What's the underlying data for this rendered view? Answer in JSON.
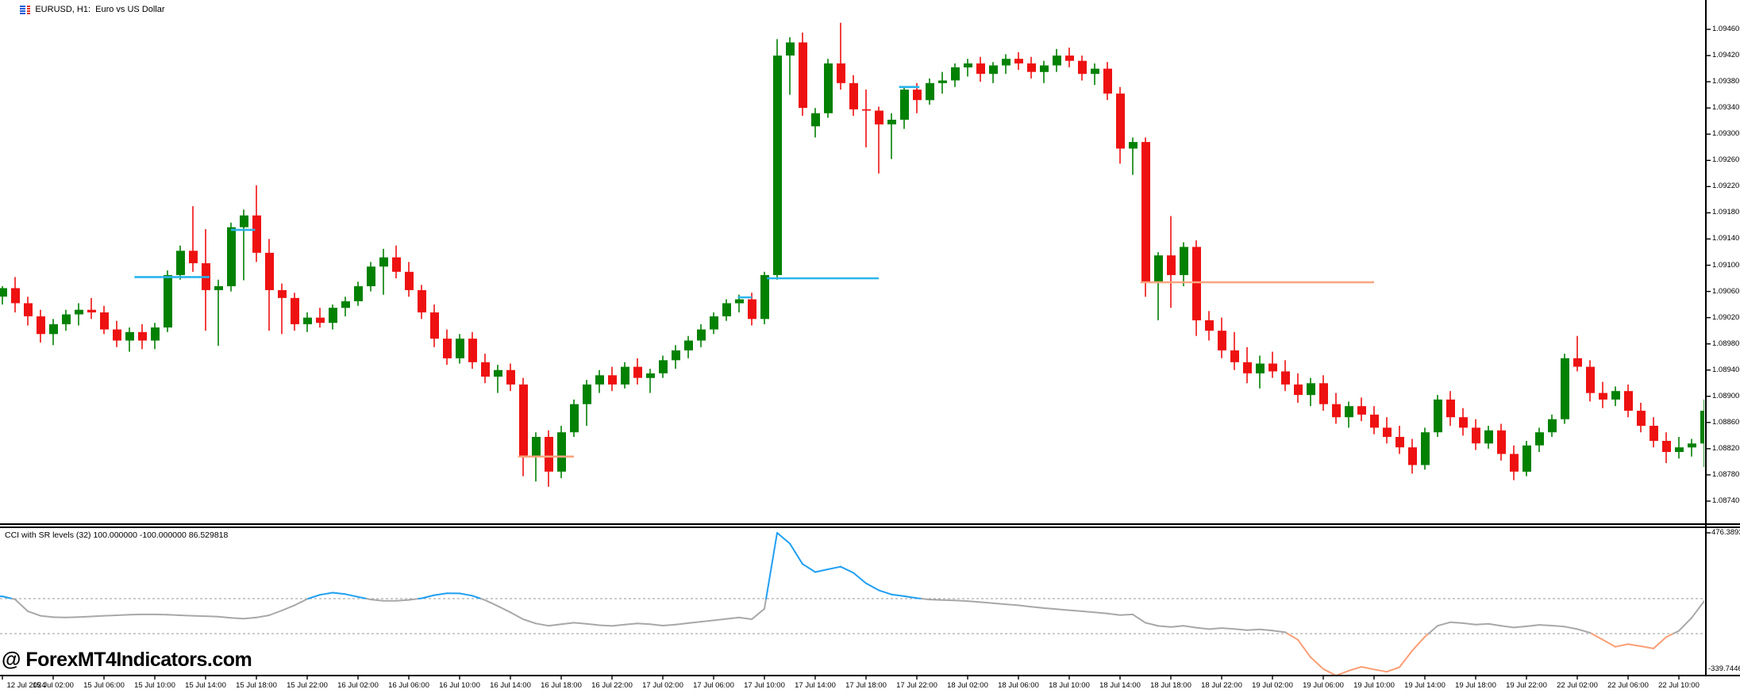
{
  "window": {
    "title": "EURUSD, H1:  Euro vs US Dollar"
  },
  "watermark": "@ ForexMT4Indicators.com",
  "indicator": {
    "label": "CCI with SR levels (32) 100.000000 -100.000000 86.529818",
    "name": "CCI with SR levels",
    "period": 32,
    "levels": [
      100,
      -100
    ],
    "max_label": "476.3893",
    "min_label": "-339.7446"
  },
  "colors": {
    "bull": "#038103",
    "bear": "#ee1111",
    "support_line": "#2ab4ec",
    "resistance_line": "#fba57f",
    "cci_mid": "#a8a8a8",
    "cci_above": "#1f9ff2",
    "cci_below": "#fb9e75",
    "level_dash": "#9a9a9a",
    "text": "#000000",
    "icon_blue": "#1c5bd8",
    "icon_red": "#e03020"
  },
  "price_axis": {
    "labels": [
      "1.09460",
      "1.09420",
      "1.09380",
      "1.09340",
      "1.09300",
      "1.09260",
      "1.09220",
      "1.09180",
      "1.09140",
      "1.09100",
      "1.09060",
      "1.09020",
      "1.08980",
      "1.08940",
      "1.08900",
      "1.08860",
      "1.08820",
      "1.08780",
      "1.08740"
    ]
  },
  "chart_data": [
    {
      "type": "candlestick",
      "title": "EURUSD H1",
      "symbol": "EURUSD",
      "timeframe": "H1",
      "ylim": [
        1.0874,
        1.0947
      ],
      "x_label_step_bars": 4,
      "x_labels": [
        "12 Jul 2024",
        "15 Jul 02:00",
        "15 Jul 06:00",
        "15 Jul 10:00",
        "15 Jul 14:00",
        "15 Jul 18:00",
        "15 Jul 22:00",
        "16 Jul 02:00",
        "16 Jul 06:00",
        "16 Jul 10:00",
        "16 Jul 14:00",
        "16 Jul 18:00",
        "16 Jul 22:00",
        "17 Jul 02:00",
        "17 Jul 06:00",
        "17 Jul 10:00",
        "17 Jul 14:00",
        "17 Jul 18:00",
        "17 Jul 22:00",
        "18 Jul 02:00",
        "18 Jul 06:00",
        "18 Jul 10:00",
        "18 Jul 14:00",
        "18 Jul 18:00",
        "18 Jul 22:00",
        "19 Jul 02:00",
        "19 Jul 06:00",
        "19 Jul 10:00",
        "19 Jul 14:00",
        "19 Jul 18:00",
        "19 Jul 22:00",
        "22 Jul 02:00",
        "22 Jul 06:00",
        "22 Jul 10:00"
      ],
      "ohlc": [
        [
          1.09052,
          1.09068,
          1.0904,
          1.09065
        ],
        [
          1.09065,
          1.09082,
          1.09028,
          1.09042
        ],
        [
          1.09042,
          1.09052,
          1.09008,
          1.09022
        ],
        [
          1.09022,
          1.09032,
          1.08982,
          1.08995
        ],
        [
          1.08995,
          1.09018,
          1.08978,
          1.0901
        ],
        [
          1.0901,
          1.09032,
          1.09,
          1.09025
        ],
        [
          1.09025,
          1.09042,
          1.09008,
          1.09032
        ],
        [
          1.09032,
          1.0905,
          1.09018,
          1.09028
        ],
        [
          1.09028,
          1.09038,
          1.08995,
          1.09002
        ],
        [
          1.09002,
          1.09015,
          1.08975,
          1.08985
        ],
        [
          1.08985,
          1.09005,
          1.08968,
          1.08998
        ],
        [
          1.08998,
          1.0901,
          1.08972,
          1.08985
        ],
        [
          1.08985,
          1.09012,
          1.08972,
          1.09005
        ],
        [
          1.09005,
          1.09092,
          1.08998,
          1.09085
        ],
        [
          1.09085,
          1.0913,
          1.09078,
          1.09122
        ],
        [
          1.09122,
          1.0919,
          1.0909,
          1.09103
        ],
        [
          1.09103,
          1.09155,
          1.09,
          1.09062
        ],
        [
          1.09062,
          1.09078,
          1.08977,
          1.09068
        ],
        [
          1.09068,
          1.09165,
          1.0906,
          1.09158
        ],
        [
          1.09158,
          1.09185,
          1.09077,
          1.09176
        ],
        [
          1.09176,
          1.09222,
          1.09105,
          1.09119
        ],
        [
          1.09119,
          1.0914,
          1.09,
          1.09062
        ],
        [
          1.09062,
          1.09072,
          1.08995,
          1.0905
        ],
        [
          1.0905,
          1.09058,
          1.09,
          1.0901
        ],
        [
          1.0901,
          1.09028,
          1.08998,
          1.0902
        ],
        [
          1.0902,
          1.09035,
          1.09005,
          1.09012
        ],
        [
          1.09012,
          1.0904,
          1.09002,
          1.09035
        ],
        [
          1.09035,
          1.09052,
          1.09022,
          1.09045
        ],
        [
          1.09045,
          1.09075,
          1.09038,
          1.09068
        ],
        [
          1.09068,
          1.09105,
          1.0906,
          1.09098
        ],
        [
          1.09098,
          1.09125,
          1.09055,
          1.09112
        ],
        [
          1.09112,
          1.0913,
          1.0908,
          1.0909
        ],
        [
          1.0909,
          1.09105,
          1.09052,
          1.09062
        ],
        [
          1.09062,
          1.0907,
          1.09018,
          1.09028
        ],
        [
          1.09028,
          1.0904,
          1.08975,
          1.08988
        ],
        [
          1.08988,
          1.09002,
          1.08948,
          1.08958
        ],
        [
          1.08958,
          1.08995,
          1.0895,
          1.08988
        ],
        [
          1.08988,
          1.08998,
          1.08942,
          1.08952
        ],
        [
          1.08952,
          1.08965,
          1.0892,
          1.0893
        ],
        [
          1.0893,
          1.08948,
          1.08905,
          1.0894
        ],
        [
          1.0894,
          1.0895,
          1.08908,
          1.08918
        ],
        [
          1.08918,
          1.08928,
          1.08778,
          1.08808
        ],
        [
          1.08808,
          1.08845,
          1.0877,
          1.08838
        ],
        [
          1.08838,
          1.08848,
          1.08762,
          1.08785
        ],
        [
          1.08785,
          1.08855,
          1.08775,
          1.08845
        ],
        [
          1.08845,
          1.08895,
          1.08838,
          1.08888
        ],
        [
          1.08888,
          1.08925,
          1.08855,
          1.08918
        ],
        [
          1.08918,
          1.0894,
          1.08905,
          1.08932
        ],
        [
          1.08932,
          1.08945,
          1.08908,
          1.08918
        ],
        [
          1.08918,
          1.08952,
          1.08912,
          1.08945
        ],
        [
          1.08945,
          1.08958,
          1.08918,
          1.08928
        ],
        [
          1.08928,
          1.08942,
          1.08905,
          1.08935
        ],
        [
          1.08935,
          1.08962,
          1.08928,
          1.08955
        ],
        [
          1.08955,
          1.08978,
          1.08942,
          1.0897
        ],
        [
          1.0897,
          1.08992,
          1.08958,
          1.08985
        ],
        [
          1.08985,
          1.0901,
          1.08975,
          1.09002
        ],
        [
          1.09002,
          1.09028,
          1.08995,
          1.09022
        ],
        [
          1.09022,
          1.09048,
          1.09015,
          1.09042
        ],
        [
          1.09042,
          1.09055,
          1.09028,
          1.09048
        ],
        [
          1.09048,
          1.09058,
          1.09008,
          1.09018
        ],
        [
          1.09018,
          1.0909,
          1.0901,
          1.09085
        ],
        [
          1.09085,
          1.09445,
          1.09078,
          1.0942
        ],
        [
          1.0942,
          1.09448,
          1.0936,
          1.0944
        ],
        [
          1.0944,
          1.09455,
          1.09328,
          1.0934
        ],
        [
          1.09312,
          1.0934,
          1.09295,
          1.09332
        ],
        [
          1.09332,
          1.09415,
          1.09325,
          1.09408
        ],
        [
          1.09408,
          1.0947,
          1.09368,
          1.09378
        ],
        [
          1.09378,
          1.0939,
          1.09328,
          1.09338
        ],
        [
          1.09338,
          1.09368,
          1.0928,
          1.09336
        ],
        [
          1.09336,
          1.09342,
          1.0924,
          1.09315
        ],
        [
          1.09315,
          1.09332,
          1.09262,
          1.09322
        ],
        [
          1.09322,
          1.09372,
          1.09308,
          1.09368
        ],
        [
          1.09368,
          1.09378,
          1.09332,
          1.09352
        ],
        [
          1.09352,
          1.09385,
          1.09345,
          1.09378
        ],
        [
          1.09378,
          1.09395,
          1.09362,
          1.09382
        ],
        [
          1.09382,
          1.09408,
          1.09372,
          1.09402
        ],
        [
          1.09402,
          1.09415,
          1.09388,
          1.09408
        ],
        [
          1.09408,
          1.09418,
          1.0938,
          1.09392
        ],
        [
          1.09392,
          1.0941,
          1.09378,
          1.09405
        ],
        [
          1.09405,
          1.09422,
          1.09392,
          1.09415
        ],
        [
          1.09415,
          1.09425,
          1.09398,
          1.09408
        ],
        [
          1.09408,
          1.09418,
          1.09385,
          1.09395
        ],
        [
          1.09395,
          1.09412,
          1.09378,
          1.09405
        ],
        [
          1.09405,
          1.0943,
          1.09395,
          1.0942
        ],
        [
          1.0942,
          1.09432,
          1.09402,
          1.09412
        ],
        [
          1.09412,
          1.0942,
          1.09382,
          1.09392
        ],
        [
          1.09392,
          1.09408,
          1.09375,
          1.094
        ],
        [
          1.094,
          1.0941,
          1.09352,
          1.09362
        ],
        [
          1.09362,
          1.09372,
          1.09255,
          1.09278
        ],
        [
          1.09278,
          1.09295,
          1.09238,
          1.09288
        ],
        [
          1.09288,
          1.09295,
          1.09052,
          1.09074
        ],
        [
          1.09074,
          1.0912,
          1.09016,
          1.09115
        ],
        [
          1.09115,
          1.09175,
          1.09035,
          1.09085
        ],
        [
          1.09085,
          1.09135,
          1.09068,
          1.09128
        ],
        [
          1.09128,
          1.09138,
          1.08992,
          1.09016
        ],
        [
          1.09016,
          1.0903,
          1.08985,
          1.09
        ],
        [
          1.09,
          1.0902,
          1.08958,
          1.0897
        ],
        [
          1.0897,
          1.08998,
          1.0894,
          1.08952
        ],
        [
          1.08952,
          1.08975,
          1.0892,
          1.08935
        ],
        [
          1.08935,
          1.08962,
          1.08912,
          1.0895
        ],
        [
          1.0895,
          1.08968,
          1.08928,
          1.08938
        ],
        [
          1.08938,
          1.08955,
          1.08908,
          1.08918
        ],
        [
          1.08918,
          1.08935,
          1.0889,
          1.08902
        ],
        [
          1.08902,
          1.08928,
          1.08885,
          1.0892
        ],
        [
          1.0892,
          1.08932,
          1.08878,
          1.08888
        ],
        [
          1.08888,
          1.08905,
          1.08858,
          1.08868
        ],
        [
          1.08868,
          1.08892,
          1.08852,
          1.08885
        ],
        [
          1.08885,
          1.08898,
          1.08862,
          1.08872
        ],
        [
          1.08872,
          1.08885,
          1.08842,
          1.08852
        ],
        [
          1.08852,
          1.08868,
          1.08828,
          1.08838
        ],
        [
          1.08838,
          1.08855,
          1.08812,
          1.08822
        ],
        [
          1.08822,
          1.08835,
          1.08782,
          1.08795
        ],
        [
          1.08795,
          1.08852,
          1.08788,
          1.08845
        ],
        [
          1.08845,
          1.08902,
          1.08838,
          1.08895
        ],
        [
          1.08895,
          1.08908,
          1.08855,
          1.08868
        ],
        [
          1.08868,
          1.08882,
          1.0884,
          1.08852
        ],
        [
          1.08852,
          1.08865,
          1.08818,
          1.08828
        ],
        [
          1.08828,
          1.08855,
          1.0882,
          1.08848
        ],
        [
          1.08848,
          1.08858,
          1.08802,
          1.08812
        ],
        [
          1.08812,
          1.08825,
          1.08772,
          1.08785
        ],
        [
          1.08785,
          1.08832,
          1.08778,
          1.08825
        ],
        [
          1.08825,
          1.08852,
          1.08815,
          1.08845
        ],
        [
          1.08845,
          1.08872,
          1.08838,
          1.08865
        ],
        [
          1.08865,
          1.08965,
          1.08858,
          1.08958
        ],
        [
          1.08958,
          1.08992,
          1.08938,
          1.08945
        ],
        [
          1.08945,
          1.08955,
          1.08892,
          1.08905
        ],
        [
          1.08905,
          1.08922,
          1.08882,
          1.08895
        ],
        [
          1.08895,
          1.08915,
          1.08885,
          1.08908
        ],
        [
          1.08908,
          1.08918,
          1.08868,
          1.08878
        ],
        [
          1.08878,
          1.0889,
          1.08845,
          1.08855
        ],
        [
          1.08855,
          1.08868,
          1.08822,
          1.08832
        ],
        [
          1.08832,
          1.08845,
          1.08798,
          1.08815
        ],
        [
          1.08815,
          1.08838,
          1.08805,
          1.08822
        ],
        [
          1.08822,
          1.08835,
          1.08808,
          1.08828
        ],
        [
          1.08828,
          1.08895,
          1.08792,
          1.08878
        ]
      ],
      "sr_lines": [
        {
          "kind": "support",
          "from_bar": 10.4,
          "to_bar": 16.3,
          "price": 1.09082
        },
        {
          "kind": "support",
          "from_bar": 18.0,
          "to_bar": 19.9,
          "price": 1.09154
        },
        {
          "kind": "resistance",
          "from_bar": 40.6,
          "to_bar": 45.0,
          "price": 1.08808
        },
        {
          "kind": "support",
          "from_bar": 57.9,
          "to_bar": 59.0,
          "price": 1.09051
        },
        {
          "kind": "support",
          "from_bar": 60.2,
          "to_bar": 69.0,
          "price": 1.0908
        },
        {
          "kind": "support",
          "from_bar": 70.6,
          "to_bar": 72.2,
          "price": 1.09372
        },
        {
          "kind": "resistance",
          "from_bar": 89.6,
          "to_bar": 108.0,
          "price": 1.09074
        }
      ]
    },
    {
      "type": "line",
      "name": "CCI with SR levels (32)",
      "max": 476.3893,
      "min": -339.7446,
      "last": 86.529818,
      "levels": [
        100,
        -100
      ],
      "color_rule": "blue above +100, orange below -100, gray between",
      "values": [
        113,
        96,
        28,
        2,
        -6,
        -8,
        -5,
        -2,
        2,
        5,
        8,
        10,
        10,
        8,
        5,
        2,
        0,
        -3,
        -10,
        -14,
        -8,
        5,
        32,
        62,
        98,
        122,
        134,
        126,
        110,
        95,
        88,
        88,
        93,
        102,
        120,
        131,
        130,
        117,
        92,
        58,
        22,
        -18,
        -42,
        -55,
        -46,
        -38,
        -44,
        -52,
        -56,
        -48,
        -42,
        -46,
        -54,
        -48,
        -40,
        -32,
        -24,
        -16,
        -8,
        -18,
        42,
        476.3893,
        415,
        298,
        252,
        268,
        283,
        248,
        188,
        148,
        124,
        114,
        103,
        95,
        92,
        90,
        86,
        80,
        74,
        68,
        62,
        54,
        46,
        40,
        34,
        28,
        22,
        15,
        6,
        10,
        -38,
        -56,
        -62,
        -55,
        -66,
        -74,
        -68,
        -73,
        -80,
        -76,
        -82,
        -92,
        -135,
        -235,
        -302,
        -339.7446,
        -312,
        -290,
        -305,
        -318,
        -292,
        -198,
        -118,
        -55,
        -35,
        -40,
        -48,
        -44,
        -55,
        -65,
        -58,
        -50,
        -54,
        -60,
        -74,
        -95,
        -135,
        -175,
        -160,
        -172,
        -185,
        -120,
        -84,
        -10,
        86.529818
      ]
    }
  ]
}
